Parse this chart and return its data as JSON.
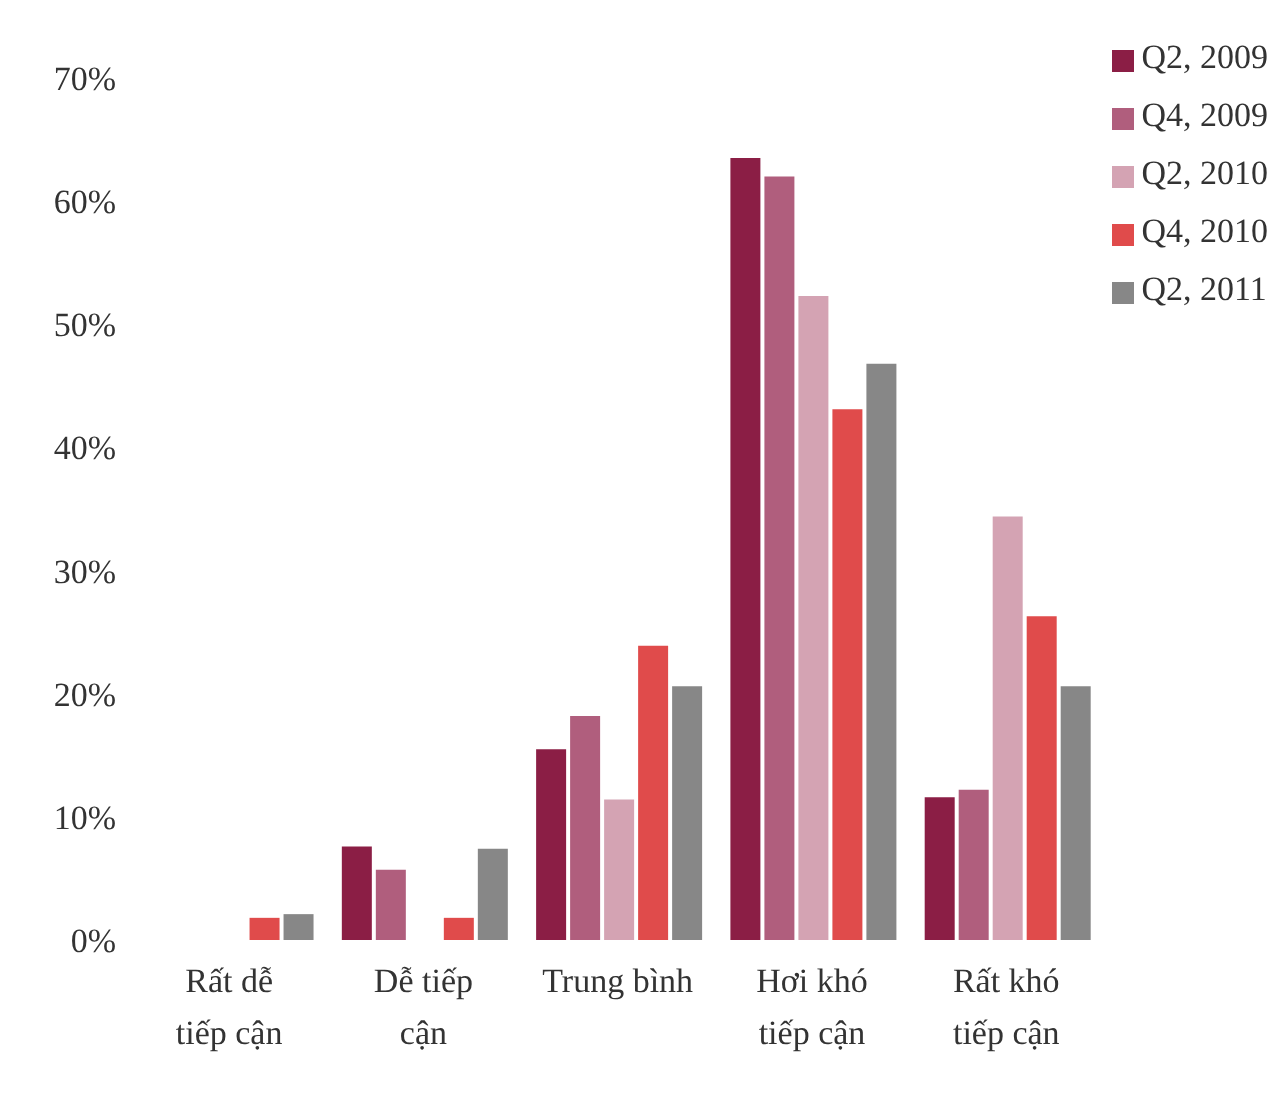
{
  "chart_data": {
    "type": "bar",
    "categories": [
      "Rất dễ tiếp cận",
      "Dễ tiếp cận",
      "Trung bình",
      "Hơi khó tiếp cận",
      "Rất khó tiếp cận"
    ],
    "series": [
      {
        "name": "Q2, 2009",
        "color": "#8b1e45",
        "values": [
          0,
          7.6,
          15.5,
          63.5,
          11.6
        ]
      },
      {
        "name": "Q4, 2009",
        "color": "#b05e7d",
        "values": [
          0,
          5.7,
          18.2,
          62.0,
          12.2
        ]
      },
      {
        "name": "Q2, 2010",
        "color": "#d4a3b3",
        "values": [
          0,
          0,
          11.4,
          52.3,
          34.4
        ]
      },
      {
        "name": "Q4, 2010",
        "color": "#e04b4b",
        "values": [
          1.8,
          1.8,
          23.9,
          43.1,
          26.3
        ]
      },
      {
        "name": "Q2, 2011",
        "color": "#878787",
        "values": [
          2.1,
          7.4,
          20.6,
          46.8,
          20.6
        ]
      }
    ],
    "ylim": [
      0,
      70
    ],
    "yticks": [
      {
        "value": 0,
        "label": "0%"
      },
      {
        "value": 10,
        "label": "10%"
      },
      {
        "value": 20,
        "label": "20%"
      },
      {
        "value": 30,
        "label": "30%"
      },
      {
        "value": 40,
        "label": "40%"
      },
      {
        "value": 50,
        "label": "50%"
      },
      {
        "value": 60,
        "label": "60%"
      },
      {
        "value": 70,
        "label": "70%"
      }
    ],
    "grid": false,
    "legend": "top right"
  }
}
